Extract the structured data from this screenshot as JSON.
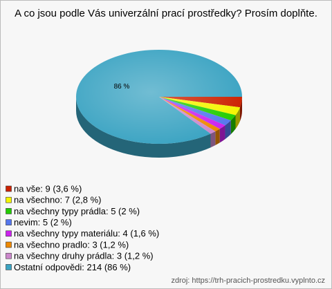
{
  "chart_data": {
    "type": "pie3d",
    "title": "A co jsou podle Vás univerzální prací prostředky? Prosím doplňte.",
    "categories": [
      "na vše: 9 (3,6 %)",
      "na všechno: 7 (2,8 %)",
      "na všechny typy prádla: 5 (2 %)",
      "nevim: 5 (2 %)",
      "na všechny typy materiálu: 4 (1,6 %)",
      "na všechno pradlo: 3 (1,2 %)",
      "na všechny druhy prádla: 3 (1,2 %)",
      "Ostatní odpovědi: 214 (86 %)"
    ],
    "values": [
      3.6,
      2.8,
      2,
      2,
      1.6,
      1.2,
      1.2,
      86
    ],
    "value_labels": [
      null,
      null,
      null,
      null,
      null,
      null,
      null,
      "86 %"
    ],
    "colors": [
      "#cc2200",
      "#f5f500",
      "#22cc00",
      "#5577ee",
      "#cc22ee",
      "#ee8800",
      "#cc88cc",
      "#3aa3c2"
    ],
    "source": "zdroj: https://trh-pracich-prostredku.vyplnto.cz"
  }
}
